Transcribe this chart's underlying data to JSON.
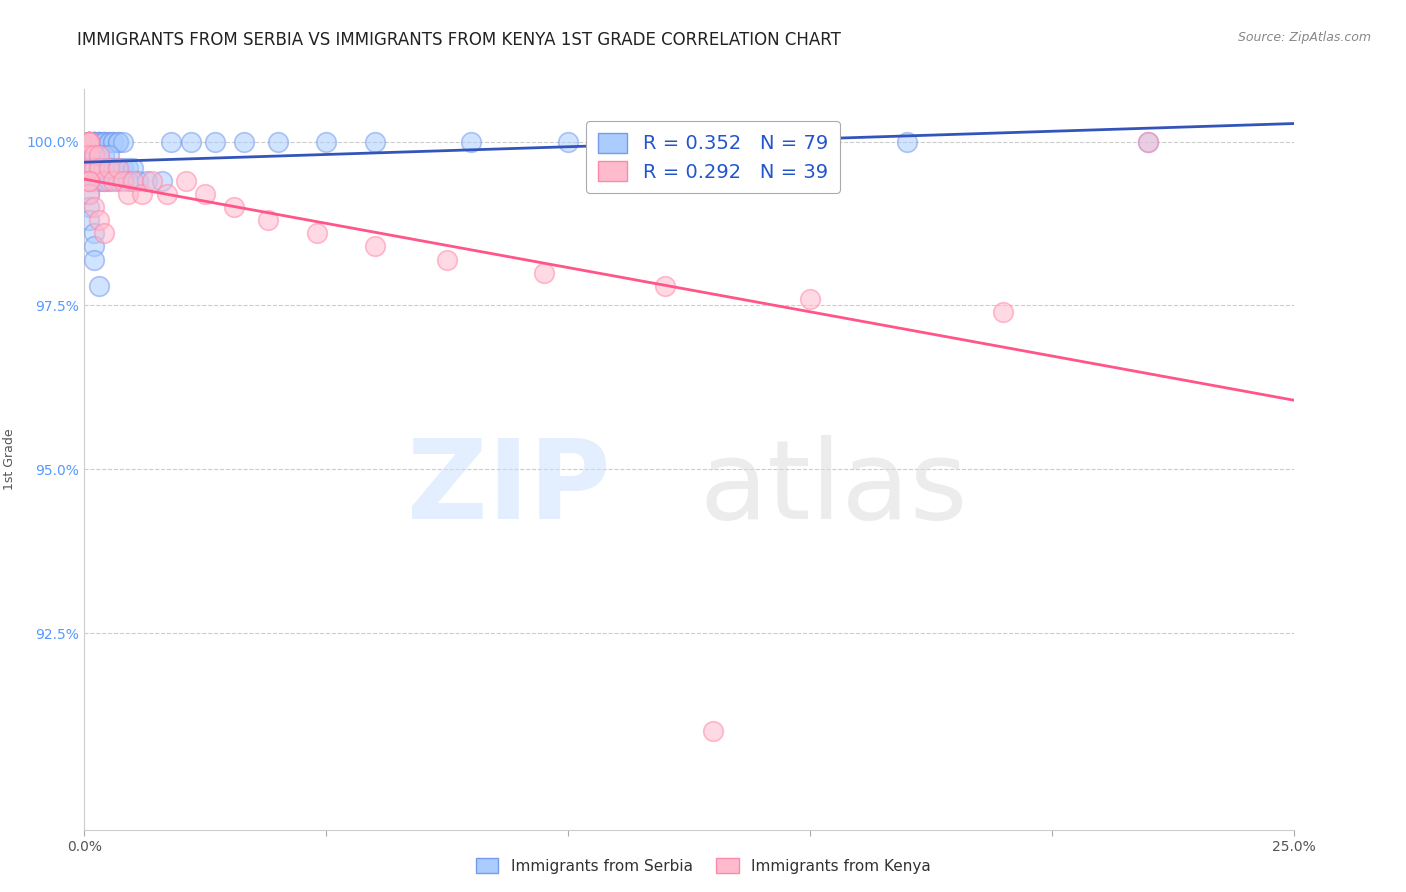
{
  "title": "IMMIGRANTS FROM SERBIA VS IMMIGRANTS FROM KENYA 1ST GRADE CORRELATION CHART",
  "source": "Source: ZipAtlas.com",
  "ylabel": "1st Grade",
  "watermark_zip": "ZIP",
  "watermark_atlas": "atlas",
  "series": [
    {
      "label": "Immigrants from Serbia",
      "R": 0.352,
      "N": 79,
      "dot_color": "#aaccff",
      "dot_edge": "#7799ee",
      "line_color": "#3355bb",
      "x": [
        0.001,
        0.001,
        0.001,
        0.001,
        0.001,
        0.001,
        0.001,
        0.001,
        0.001,
        0.001,
        0.002,
        0.002,
        0.002,
        0.002,
        0.002,
        0.002,
        0.003,
        0.003,
        0.003,
        0.003,
        0.004,
        0.004,
        0.004,
        0.005,
        0.005,
        0.006,
        0.006,
        0.007,
        0.007,
        0.008,
        0.001,
        0.001,
        0.001,
        0.002,
        0.002,
        0.002,
        0.003,
        0.003,
        0.004,
        0.005,
        0.001,
        0.002,
        0.003,
        0.004,
        0.005,
        0.006,
        0.007,
        0.008,
        0.009,
        0.01,
        0.001,
        0.002,
        0.003,
        0.004,
        0.005,
        0.007,
        0.009,
        0.011,
        0.013,
        0.016,
        0.018,
        0.022,
        0.027,
        0.033,
        0.04,
        0.05,
        0.06,
        0.08,
        0.1,
        0.13,
        0.17,
        0.22,
        0.001,
        0.001,
        0.001,
        0.002,
        0.002,
        0.002,
        0.003
      ],
      "y": [
        1.0,
        1.0,
        1.0,
        1.0,
        1.0,
        1.0,
        1.0,
        1.0,
        1.0,
        1.0,
        1.0,
        1.0,
        1.0,
        1.0,
        1.0,
        1.0,
        1.0,
        1.0,
        1.0,
        1.0,
        1.0,
        1.0,
        1.0,
        1.0,
        1.0,
        1.0,
        1.0,
        1.0,
        1.0,
        1.0,
        0.998,
        0.998,
        0.998,
        0.998,
        0.998,
        0.998,
        0.998,
        0.998,
        0.998,
        0.998,
        0.996,
        0.996,
        0.996,
        0.996,
        0.996,
        0.996,
        0.996,
        0.996,
        0.996,
        0.996,
        0.994,
        0.994,
        0.994,
        0.994,
        0.994,
        0.994,
        0.994,
        0.994,
        0.994,
        0.994,
        1.0,
        1.0,
        1.0,
        1.0,
        1.0,
        1.0,
        1.0,
        1.0,
        1.0,
        1.0,
        1.0,
        1.0,
        0.992,
        0.99,
        0.988,
        0.986,
        0.984,
        0.982,
        0.978
      ]
    },
    {
      "label": "Immigrants from Kenya",
      "R": 0.292,
      "N": 39,
      "dot_color": "#ffbbcc",
      "dot_edge": "#ff88aa",
      "line_color": "#ff5588",
      "x": [
        0.001,
        0.001,
        0.001,
        0.001,
        0.001,
        0.001,
        0.002,
        0.002,
        0.003,
        0.003,
        0.004,
        0.005,
        0.006,
        0.007,
        0.008,
        0.009,
        0.01,
        0.012,
        0.014,
        0.017,
        0.021,
        0.025,
        0.031,
        0.038,
        0.048,
        0.06,
        0.075,
        0.095,
        0.12,
        0.15,
        0.19,
        0.22,
        0.001,
        0.001,
        0.002,
        0.003,
        0.004,
        0.13,
        0.001
      ],
      "y": [
        1.0,
        1.0,
        1.0,
        1.0,
        0.998,
        0.996,
        0.998,
        0.996,
        0.998,
        0.996,
        0.994,
        0.996,
        0.994,
        0.996,
        0.994,
        0.992,
        0.994,
        0.992,
        0.994,
        0.992,
        0.994,
        0.992,
        0.99,
        0.988,
        0.986,
        0.984,
        0.982,
        0.98,
        0.978,
        0.976,
        0.974,
        1.0,
        0.994,
        0.992,
        0.99,
        0.988,
        0.986,
        0.91,
        0.994
      ]
    }
  ],
  "xlim": [
    0.0,
    0.25
  ],
  "ylim": [
    0.895,
    1.008
  ],
  "yticks": [
    0.925,
    0.95,
    0.975,
    1.0
  ],
  "yticklabels": [
    "92.5%",
    "95.0%",
    "97.5%",
    "100.0%"
  ],
  "xticks": [
    0.0,
    0.05,
    0.1,
    0.15,
    0.2,
    0.25
  ],
  "xticklabels": [
    "0.0%",
    "",
    "",
    "",
    "",
    "25.0%"
  ],
  "background_color": "#ffffff",
  "grid_color": "#cccccc",
  "title_fontsize": 12,
  "axis_label_fontsize": 9,
  "tick_fontsize": 10,
  "legend_fontsize": 14,
  "ytick_color": "#5599ff",
  "xtick_color": "#555555"
}
